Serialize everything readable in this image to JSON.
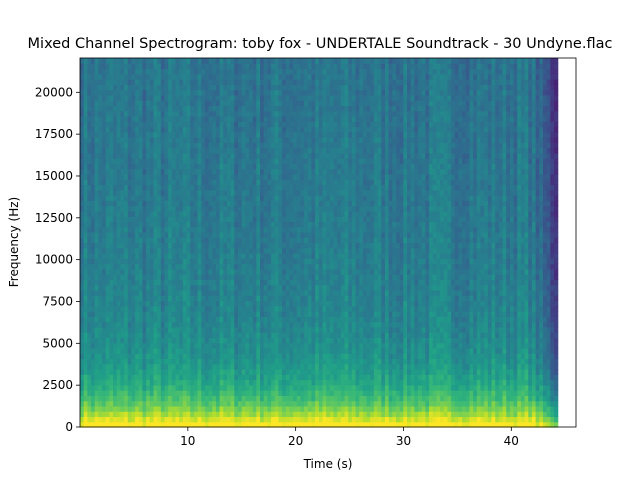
{
  "chart_data": {
    "type": "heatmap",
    "title": "Mixed Channel Spectrogram: toby fox - UNDERTALE Soundtrack - 30 Undyne.flac",
    "xlabel": "Time (s)",
    "ylabel": "Frequency (Hz)",
    "xlim": [
      0,
      46
    ],
    "ylim": [
      0,
      22050
    ],
    "data_time_range": [
      0,
      44.3
    ],
    "x_ticks": [
      10,
      20,
      30,
      40
    ],
    "y_ticks": [
      0,
      2500,
      5000,
      7500,
      10000,
      12500,
      15000,
      17500,
      20000
    ],
    "x_tick_labels": [
      "10",
      "20",
      "30",
      "40"
    ],
    "y_tick_labels": [
      "0",
      "2500",
      "5000",
      "7500",
      "10000",
      "12500",
      "15000",
      "17500",
      "20000"
    ],
    "colormap": "viridis",
    "grid": false,
    "legend": "none",
    "colors": {
      "low": "#440154",
      "mid": "#21918c",
      "high": "#fde725"
    }
  }
}
